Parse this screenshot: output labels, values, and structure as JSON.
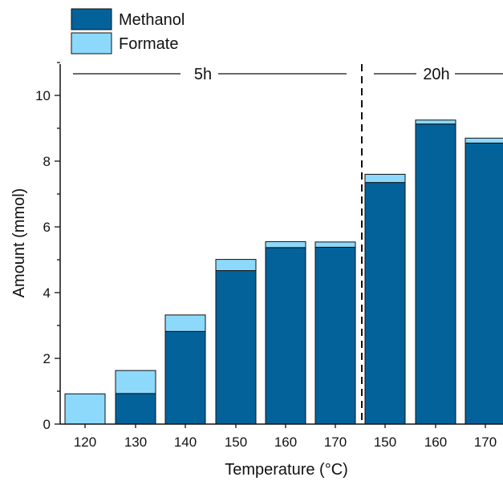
{
  "chart_data": {
    "type": "bar",
    "stacked": true,
    "categories": [
      "120",
      "130",
      "140",
      "150",
      "160",
      "170",
      "150",
      "160",
      "170"
    ],
    "groups": [
      {
        "label": "5h",
        "categories": [
          "120",
          "130",
          "140",
          "150",
          "160",
          "170"
        ]
      },
      {
        "label": "20h",
        "categories": [
          "150",
          "160",
          "170"
        ]
      }
    ],
    "series": [
      {
        "name": "Methanol",
        "color": "#04629B",
        "values": [
          0.0,
          0.93,
          2.82,
          4.67,
          5.37,
          5.38,
          7.35,
          9.13,
          8.55
        ]
      },
      {
        "name": "Formate",
        "color": "#8DD9FB",
        "values": [
          0.92,
          0.7,
          0.5,
          0.34,
          0.18,
          0.16,
          0.25,
          0.12,
          0.15
        ]
      }
    ],
    "xlabel": "Temperature (°C)",
    "ylabel": "Amount (mmol)",
    "ylim": [
      0,
      11
    ],
    "yticks": [
      0,
      2,
      4,
      6,
      8,
      10
    ],
    "legend": {
      "position": "top-left",
      "entries": [
        "Methanol",
        "Formate"
      ]
    },
    "grid": false
  }
}
